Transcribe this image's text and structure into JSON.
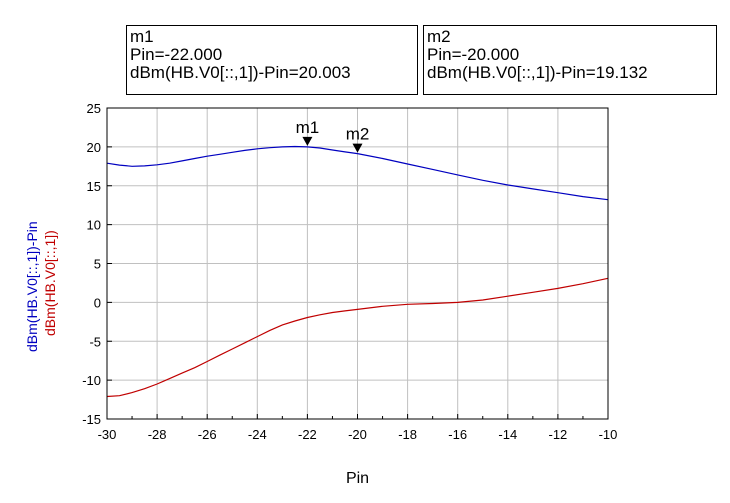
{
  "markers": [
    {
      "name": "m1",
      "line1": "Pin=-22.000",
      "line2": "dBm(HB.V0[::,1])-Pin=20.003",
      "x": -22,
      "y": 20.003
    },
    {
      "name": "m2",
      "line1": "Pin=-20.000",
      "line2": "dBm(HB.V0[::,1])-Pin=19.132",
      "x": -20,
      "y": 19.132
    }
  ],
  "chart_data": {
    "type": "line",
    "xlabel": "Pin",
    "ylabels": [
      "dBm(HB.V0[::,1])-Pin",
      "dBm(HB.V0[::,1])"
    ],
    "xlim": [
      -30,
      -10
    ],
    "ylim": [
      -15,
      25
    ],
    "xticks": [
      -30,
      -28,
      -26,
      -24,
      -22,
      -20,
      -18,
      -16,
      -14,
      -12,
      -10
    ],
    "yticks": [
      -15,
      -10,
      -5,
      0,
      5,
      10,
      15,
      20,
      25
    ],
    "grid": true,
    "series": [
      {
        "name": "dBm(HB.V0[::,1])-Pin",
        "color": "#0000c0",
        "x": [
          -30,
          -29.5,
          -29,
          -28.5,
          -28,
          -27.5,
          -27,
          -26.5,
          -26,
          -25.5,
          -25,
          -24.5,
          -24,
          -23.5,
          -23,
          -22.5,
          -22,
          -21.5,
          -21,
          -20.5,
          -20,
          -19,
          -18,
          -17,
          -16,
          -15,
          -14,
          -13,
          -12,
          -11,
          -10
        ],
        "y": [
          17.9,
          17.65,
          17.5,
          17.55,
          17.7,
          17.9,
          18.2,
          18.5,
          18.8,
          19.05,
          19.3,
          19.55,
          19.75,
          19.9,
          20.0,
          20.05,
          20.003,
          19.85,
          19.6,
          19.35,
          19.132,
          18.5,
          17.8,
          17.1,
          16.4,
          15.7,
          15.1,
          14.6,
          14.1,
          13.6,
          13.2
        ]
      },
      {
        "name": "dBm(HB.V0[::,1])",
        "color": "#c00000",
        "x": [
          -30,
          -29.5,
          -29,
          -28.5,
          -28,
          -27.5,
          -27,
          -26.5,
          -26,
          -25.5,
          -25,
          -24.5,
          -24,
          -23.5,
          -23,
          -22.5,
          -22,
          -21.5,
          -21,
          -20.5,
          -20,
          -19,
          -18,
          -17,
          -16,
          -15,
          -14,
          -13,
          -12,
          -11,
          -10
        ],
        "y": [
          -12.1,
          -12.0,
          -11.6,
          -11.1,
          -10.5,
          -9.8,
          -9.1,
          -8.4,
          -7.6,
          -6.8,
          -6.0,
          -5.2,
          -4.4,
          -3.6,
          -2.9,
          -2.4,
          -1.95,
          -1.6,
          -1.3,
          -1.1,
          -0.9,
          -0.5,
          -0.25,
          -0.15,
          0.0,
          0.3,
          0.8,
          1.3,
          1.8,
          2.4,
          3.1
        ]
      }
    ]
  }
}
